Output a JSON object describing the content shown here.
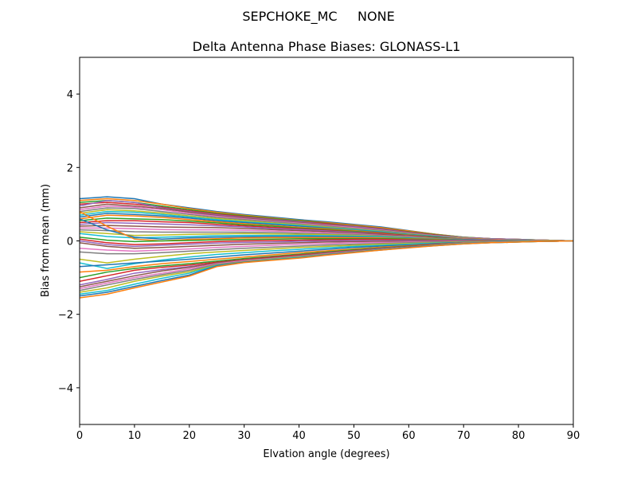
{
  "chart_data": {
    "type": "line",
    "suptitle": "SEPCHOKE_MC     NONE",
    "title": "Delta Antenna Phase Biases: GLONASS-L1",
    "xlabel": "Elvation angle (degrees)",
    "ylabel": "Bias from mean (mm)",
    "xlim": [
      0,
      90
    ],
    "ylim": [
      -5,
      5
    ],
    "xticks": [
      0,
      10,
      20,
      30,
      40,
      50,
      60,
      70,
      80,
      90
    ],
    "yticks": [
      -4,
      -2,
      0,
      2,
      4
    ],
    "ytick_labels": [
      "−4",
      "−2",
      "0",
      "2",
      "4"
    ],
    "grid": false,
    "legend": "none",
    "x": [
      0,
      5,
      10,
      15,
      20,
      25,
      30,
      35,
      40,
      45,
      50,
      55,
      60,
      65,
      70,
      75,
      80,
      85,
      90
    ],
    "colors": [
      "#1f77b4",
      "#ff7f0e",
      "#2ca02c",
      "#d62728",
      "#9467bd",
      "#8c564b",
      "#e377c2",
      "#7f7f7f",
      "#bcbd22",
      "#17becf"
    ],
    "series": [
      {
        "values": [
          1.15,
          1.2,
          1.15,
          1.0,
          0.9,
          0.8,
          0.72,
          0.65,
          0.58,
          0.52,
          0.45,
          0.38,
          0.28,
          0.18,
          0.1,
          0.06,
          0.04,
          0.02,
          0.0
        ]
      },
      {
        "values": [
          1.1,
          1.15,
          1.1,
          1.0,
          0.88,
          0.78,
          0.7,
          0.63,
          0.56,
          0.5,
          0.43,
          0.36,
          0.27,
          0.18,
          0.1,
          0.06,
          0.04,
          0.02,
          0.0
        ]
      },
      {
        "values": [
          1.05,
          1.1,
          1.05,
          0.95,
          0.85,
          0.75,
          0.68,
          0.61,
          0.55,
          0.48,
          0.41,
          0.34,
          0.25,
          0.17,
          0.1,
          0.06,
          0.04,
          0.02,
          0.0
        ]
      },
      {
        "values": [
          1.0,
          1.05,
          1.0,
          0.92,
          0.82,
          0.73,
          0.66,
          0.59,
          0.53,
          0.47,
          0.4,
          0.33,
          0.24,
          0.16,
          0.09,
          0.06,
          0.04,
          0.02,
          0.0
        ]
      },
      {
        "values": [
          0.95,
          1.1,
          1.05,
          0.9,
          0.8,
          0.71,
          0.64,
          0.58,
          0.52,
          0.45,
          0.39,
          0.32,
          0.23,
          0.15,
          0.09,
          0.06,
          0.04,
          0.02,
          0.0
        ]
      },
      {
        "values": [
          0.9,
          1.0,
          0.95,
          0.88,
          0.78,
          0.69,
          0.62,
          0.56,
          0.5,
          0.44,
          0.37,
          0.3,
          0.22,
          0.15,
          0.08,
          0.05,
          0.03,
          0.02,
          0.0
        ]
      },
      {
        "values": [
          0.85,
          0.95,
          0.92,
          0.85,
          0.75,
          0.67,
          0.6,
          0.54,
          0.48,
          0.42,
          0.36,
          0.29,
          0.21,
          0.14,
          0.08,
          0.05,
          0.03,
          0.02,
          0.0
        ]
      },
      {
        "values": [
          0.8,
          0.9,
          0.88,
          0.8,
          0.72,
          0.64,
          0.58,
          0.52,
          0.46,
          0.4,
          0.34,
          0.28,
          0.2,
          0.13,
          0.07,
          0.05,
          0.03,
          0.02,
          0.0
        ]
      },
      {
        "values": [
          0.75,
          0.85,
          0.82,
          0.76,
          0.68,
          0.61,
          0.55,
          0.49,
          0.44,
          0.38,
          0.32,
          0.26,
          0.19,
          0.12,
          0.07,
          0.04,
          0.03,
          0.01,
          0.0
        ]
      },
      {
        "values": [
          0.7,
          0.8,
          0.78,
          0.72,
          0.65,
          0.58,
          0.52,
          0.47,
          0.42,
          0.36,
          0.31,
          0.25,
          0.18,
          0.12,
          0.06,
          0.04,
          0.03,
          0.01,
          0.0
        ]
      },
      {
        "values": [
          0.65,
          0.75,
          0.72,
          0.68,
          0.62,
          0.55,
          0.5,
          0.45,
          0.4,
          0.35,
          0.29,
          0.24,
          0.17,
          0.11,
          0.06,
          0.04,
          0.02,
          0.01,
          0.0
        ]
      },
      {
        "values": [
          0.6,
          0.7,
          0.68,
          0.64,
          0.58,
          0.52,
          0.47,
          0.42,
          0.37,
          0.33,
          0.28,
          0.22,
          0.16,
          0.1,
          0.06,
          0.04,
          0.02,
          0.01,
          0.0
        ]
      },
      {
        "values": [
          0.55,
          0.62,
          0.6,
          0.58,
          0.54,
          0.49,
          0.44,
          0.4,
          0.35,
          0.31,
          0.26,
          0.21,
          0.15,
          0.1,
          0.05,
          0.03,
          0.02,
          0.01,
          0.0
        ]
      },
      {
        "values": [
          0.5,
          0.55,
          0.55,
          0.52,
          0.5,
          0.45,
          0.41,
          0.37,
          0.33,
          0.29,
          0.24,
          0.2,
          0.14,
          0.09,
          0.05,
          0.03,
          0.02,
          0.01,
          0.0
        ]
      },
      {
        "values": [
          0.45,
          0.5,
          0.48,
          0.46,
          0.44,
          0.41,
          0.38,
          0.34,
          0.31,
          0.27,
          0.23,
          0.18,
          0.13,
          0.08,
          0.05,
          0.03,
          0.02,
          0.01,
          0.0
        ]
      },
      {
        "values": [
          0.4,
          0.42,
          0.4,
          0.38,
          0.37,
          0.36,
          0.34,
          0.31,
          0.28,
          0.25,
          0.21,
          0.17,
          0.12,
          0.08,
          0.04,
          0.03,
          0.02,
          0.01,
          0.0
        ]
      },
      {
        "values": [
          0.35,
          0.35,
          0.33,
          0.31,
          0.3,
          0.3,
          0.29,
          0.27,
          0.25,
          0.22,
          0.19,
          0.15,
          0.11,
          0.07,
          0.04,
          0.03,
          0.02,
          0.01,
          0.0
        ]
      },
      {
        "values": [
          0.3,
          0.28,
          0.25,
          0.24,
          0.24,
          0.24,
          0.24,
          0.23,
          0.21,
          0.19,
          0.17,
          0.14,
          0.1,
          0.07,
          0.04,
          0.02,
          0.01,
          0.01,
          0.0
        ]
      },
      {
        "values": [
          0.25,
          0.2,
          0.15,
          0.16,
          0.18,
          0.19,
          0.2,
          0.19,
          0.18,
          0.17,
          0.15,
          0.12,
          0.09,
          0.06,
          0.03,
          0.02,
          0.01,
          0.01,
          0.0
        ]
      },
      {
        "values": [
          0.2,
          0.12,
          0.08,
          0.1,
          0.12,
          0.14,
          0.15,
          0.15,
          0.15,
          0.14,
          0.13,
          0.11,
          0.08,
          0.05,
          0.03,
          0.02,
          0.01,
          0.0,
          0.0
        ]
      },
      {
        "values": [
          0.6,
          0.3,
          0.1,
          0.05,
          0.08,
          0.1,
          0.11,
          0.12,
          0.12,
          0.12,
          0.11,
          0.09,
          0.07,
          0.05,
          0.03,
          0.02,
          0.01,
          0.0,
          0.0
        ]
      },
      {
        "values": [
          0.8,
          0.4,
          0.05,
          0.0,
          0.04,
          0.06,
          0.08,
          0.09,
          0.09,
          0.09,
          0.09,
          0.08,
          0.06,
          0.04,
          0.02,
          0.01,
          0.01,
          0.0,
          0.0
        ]
      },
      {
        "values": [
          0.1,
          0.02,
          -0.02,
          0.0,
          0.01,
          0.03,
          0.04,
          0.05,
          0.06,
          0.06,
          0.06,
          0.06,
          0.05,
          0.03,
          0.02,
          0.01,
          0.01,
          0.0,
          0.0
        ]
      },
      {
        "values": [
          0.05,
          -0.05,
          -0.1,
          -0.08,
          -0.05,
          -0.02,
          0.0,
          0.01,
          0.02,
          0.03,
          0.04,
          0.04,
          0.03,
          0.02,
          0.01,
          0.01,
          0.0,
          0.0,
          0.0
        ]
      },
      {
        "values": [
          0.0,
          -0.1,
          -0.15,
          -0.12,
          -0.09,
          -0.06,
          -0.04,
          -0.03,
          -0.01,
          0.0,
          0.01,
          0.01,
          0.01,
          0.01,
          0.01,
          0.0,
          0.0,
          0.0,
          0.0
        ]
      },
      {
        "values": [
          -0.05,
          -0.15,
          -0.2,
          -0.18,
          -0.15,
          -0.12,
          -0.09,
          -0.07,
          -0.05,
          -0.03,
          -0.02,
          -0.01,
          -0.01,
          0.0,
          0.0,
          0.0,
          0.0,
          0.0,
          0.0
        ]
      },
      {
        "values": [
          -0.2,
          -0.25,
          -0.28,
          -0.25,
          -0.22,
          -0.18,
          -0.15,
          -0.12,
          -0.09,
          -0.07,
          -0.05,
          -0.04,
          -0.03,
          -0.02,
          -0.01,
          -0.01,
          0.0,
          0.0,
          0.0
        ]
      },
      {
        "values": [
          -0.3,
          -0.35,
          -0.35,
          -0.32,
          -0.28,
          -0.24,
          -0.2,
          -0.17,
          -0.14,
          -0.11,
          -0.09,
          -0.07,
          -0.05,
          -0.03,
          -0.02,
          -0.01,
          -0.01,
          0.0,
          0.0
        ]
      },
      {
        "values": [
          -0.5,
          -0.6,
          -0.5,
          -0.42,
          -0.35,
          -0.3,
          -0.26,
          -0.22,
          -0.18,
          -0.15,
          -0.12,
          -0.09,
          -0.07,
          -0.05,
          -0.03,
          -0.02,
          -0.01,
          0.0,
          0.0
        ]
      },
      {
        "values": [
          -0.6,
          -0.75,
          -0.62,
          -0.52,
          -0.44,
          -0.37,
          -0.32,
          -0.27,
          -0.23,
          -0.19,
          -0.15,
          -0.12,
          -0.09,
          -0.06,
          -0.04,
          -0.02,
          -0.01,
          -0.01,
          0.0
        ]
      },
      {
        "values": [
          -0.7,
          -0.65,
          -0.6,
          -0.55,
          -0.5,
          -0.44,
          -0.38,
          -0.33,
          -0.28,
          -0.23,
          -0.18,
          -0.14,
          -0.11,
          -0.07,
          -0.04,
          -0.03,
          -0.02,
          -0.01,
          0.0
        ]
      },
      {
        "values": [
          -0.85,
          -0.8,
          -0.7,
          -0.62,
          -0.56,
          -0.5,
          -0.44,
          -0.38,
          -0.32,
          -0.27,
          -0.22,
          -0.17,
          -0.13,
          -0.09,
          -0.05,
          -0.03,
          -0.02,
          -0.01,
          0.0
        ]
      },
      {
        "values": [
          -1.0,
          -0.85,
          -0.75,
          -0.68,
          -0.62,
          -0.55,
          -0.48,
          -0.42,
          -0.36,
          -0.3,
          -0.24,
          -0.19,
          -0.14,
          -0.1,
          -0.06,
          -0.04,
          -0.02,
          -0.01,
          0.0
        ]
      },
      {
        "values": [
          -1.1,
          -0.95,
          -0.8,
          -0.72,
          -0.66,
          -0.58,
          -0.51,
          -0.44,
          -0.38,
          -0.32,
          -0.26,
          -0.2,
          -0.15,
          -0.1,
          -0.06,
          -0.04,
          -0.02,
          -0.01,
          0.0
        ]
      },
      {
        "values": [
          -1.2,
          -1.05,
          -0.88,
          -0.78,
          -0.7,
          -0.61,
          -0.53,
          -0.46,
          -0.4,
          -0.33,
          -0.27,
          -0.21,
          -0.16,
          -0.11,
          -0.06,
          -0.04,
          -0.02,
          -0.01,
          0.0
        ]
      },
      {
        "values": [
          -1.25,
          -1.1,
          -0.95,
          -0.82,
          -0.72,
          -0.6,
          -0.52,
          -0.46,
          -0.4,
          -0.34,
          -0.28,
          -0.22,
          -0.16,
          -0.11,
          -0.07,
          -0.04,
          -0.02,
          -0.01,
          0.0
        ]
      },
      {
        "values": [
          -1.3,
          -1.15,
          -1.0,
          -0.88,
          -0.76,
          -0.62,
          -0.54,
          -0.48,
          -0.42,
          -0.35,
          -0.29,
          -0.23,
          -0.17,
          -0.12,
          -0.07,
          -0.04,
          -0.02,
          -0.01,
          0.0
        ]
      },
      {
        "values": [
          -1.35,
          -1.2,
          -1.05,
          -0.92,
          -0.8,
          -0.64,
          -0.56,
          -0.49,
          -0.43,
          -0.36,
          -0.3,
          -0.23,
          -0.17,
          -0.12,
          -0.07,
          -0.04,
          -0.02,
          -0.01,
          0.0
        ]
      },
      {
        "values": [
          -1.4,
          -1.28,
          -1.1,
          -0.96,
          -0.84,
          -0.66,
          -0.57,
          -0.5,
          -0.44,
          -0.37,
          -0.3,
          -0.24,
          -0.18,
          -0.12,
          -0.07,
          -0.05,
          -0.03,
          -0.01,
          0.0
        ]
      },
      {
        "values": [
          -1.45,
          -1.35,
          -1.18,
          -1.02,
          -0.88,
          -0.67,
          -0.58,
          -0.51,
          -0.45,
          -0.38,
          -0.31,
          -0.24,
          -0.18,
          -0.12,
          -0.07,
          -0.05,
          -0.03,
          -0.01,
          0.0
        ]
      },
      {
        "values": [
          -1.5,
          -1.4,
          -1.24,
          -1.08,
          -0.93,
          -0.68,
          -0.58,
          -0.52,
          -0.46,
          -0.38,
          -0.31,
          -0.25,
          -0.18,
          -0.13,
          -0.08,
          -0.05,
          -0.03,
          -0.01,
          0.0
        ]
      },
      {
        "values": [
          -1.55,
          -1.45,
          -1.28,
          -1.12,
          -0.96,
          -0.7,
          -0.59,
          -0.53,
          -0.47,
          -0.39,
          -0.32,
          -0.25,
          -0.19,
          -0.13,
          -0.08,
          -0.05,
          -0.03,
          -0.01,
          0.0
        ]
      }
    ]
  }
}
